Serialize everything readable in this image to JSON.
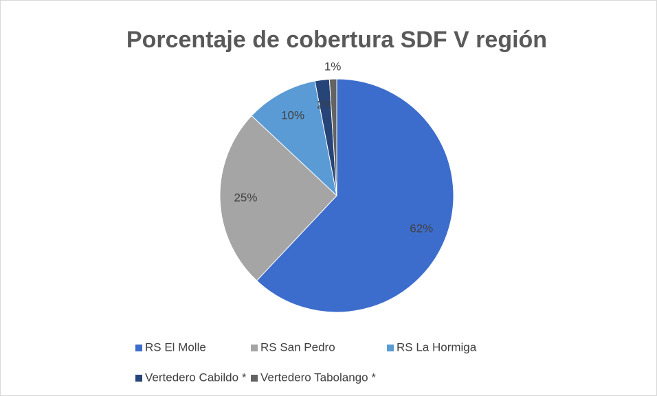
{
  "chart_data": {
    "type": "pie",
    "title": "Porcentaje de cobertura SDF V región",
    "categories": [
      "RS El Molle",
      "RS San Pedro",
      "RS La Hormiga",
      "Vertedero Cabildo *",
      "Vertedero Tabolango *"
    ],
    "values": [
      62,
      25,
      10,
      2,
      1
    ],
    "value_labels": [
      "62%",
      "25%",
      "10%",
      "2%",
      "1%"
    ],
    "colors": [
      "#3d6dcc",
      "#a5a5a5",
      "#5b9bd5",
      "#264478",
      "#636363"
    ],
    "legend": "bottom"
  }
}
